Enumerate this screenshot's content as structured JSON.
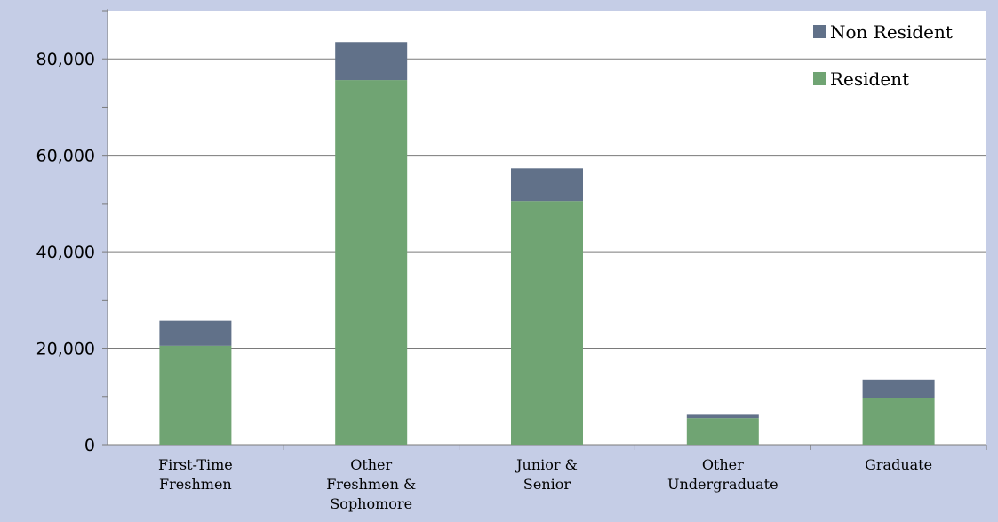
{
  "chart_data": {
    "type": "bar",
    "stacked": true,
    "categories": [
      [
        "First-Time",
        "Freshmen"
      ],
      [
        "Other",
        "Freshmen &",
        "Sophomore"
      ],
      [
        "Junior &",
        "Senior"
      ],
      [
        "Other",
        "Undergraduate"
      ],
      [
        "Graduate"
      ]
    ],
    "series": [
      {
        "name": "Resident",
        "color": "#70a473",
        "values": [
          20500,
          75600,
          50500,
          5500,
          9600
        ]
      },
      {
        "name": "Non Resident",
        "color": "#617189",
        "values": [
          5200,
          7900,
          6800,
          700,
          3900
        ]
      }
    ],
    "yticks": [
      "0",
      "20,000",
      "40,000",
      "60,000",
      "80,000"
    ],
    "ytick_values": [
      0,
      20000,
      40000,
      60000,
      80000
    ],
    "ylim": [
      0,
      90000
    ],
    "grid": true,
    "legend_position": "top-right",
    "legend_order": [
      "Non Resident",
      "Resident"
    ],
    "plot_background": "#ffffff",
    "page_background": "#c5cde6"
  }
}
